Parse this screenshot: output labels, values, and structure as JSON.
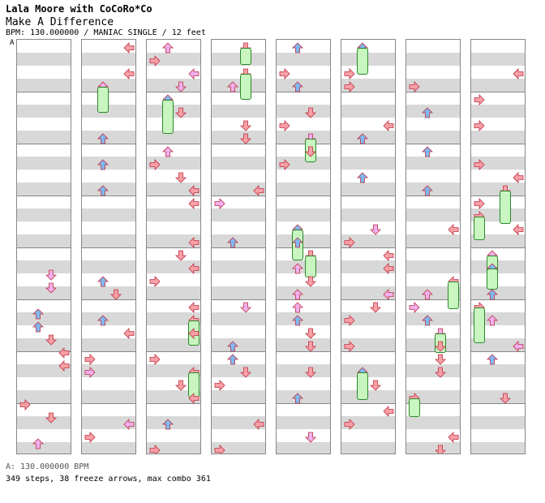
{
  "header": {
    "title": "Lala Moore with CoCoRo*Co",
    "subtitle": "Make A Difference",
    "meta": "BPM: 130.000000 / MANIAC SINGLE / 12 feet"
  },
  "bpm_marker": "A",
  "footer": {
    "bpm_line": "A: 130.000000 BPM",
    "stats_line": "349 steps, 38 freeze arrows, max combo 361"
  },
  "colors": {
    "left": "#f7a0a8",
    "down": "#7fb8f0",
    "up": "#f7a0a8",
    "right": "#f7a0a8",
    "eighth": "#f0b0f0",
    "freeze": "#c8f5c0",
    "stripe": "#d8d8d8"
  },
  "chart": {
    "columns": 8,
    "measures_per_column": 4
  }
}
